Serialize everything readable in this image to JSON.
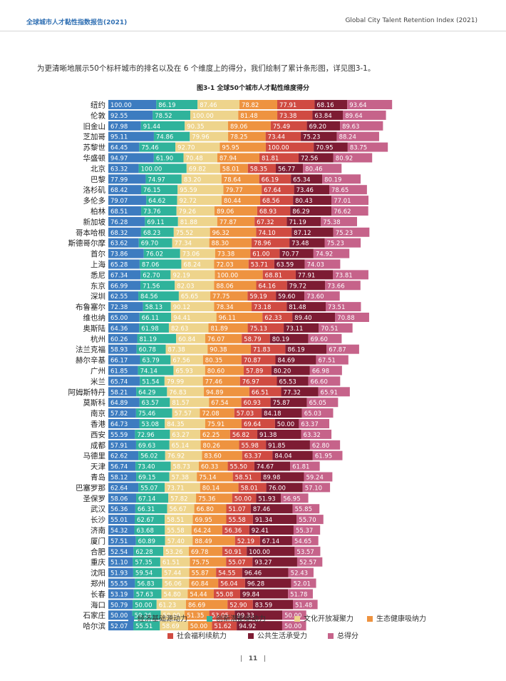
{
  "header": {
    "left": "全球城市人才黏性指数报告(2021)",
    "right": "Global City Talent Retention Index (2021)"
  },
  "intro": "为更清晰地展示50个标杆城市的排名以及在 6 个维度上的得分，我们绘制了累计条形图，详见图3-1。",
  "chart_title": "图3-1 全球50个城市人才黏性维度得分",
  "page_number": "11",
  "chart_data": {
    "type": "bar",
    "orientation": "horizontal",
    "stacked": true,
    "title": "图3-1 全球50个城市人才黏性维度得分",
    "categories": [
      "纽约",
      "伦敦",
      "旧金山",
      "芝加哥",
      "苏黎世",
      "华盛顿",
      "北京",
      "巴黎",
      "洛杉矶",
      "多伦多",
      "柏林",
      "新加坡",
      "哥本哈根",
      "斯德哥尔摩",
      "首尔",
      "上海",
      "悉尼",
      "东京",
      "深圳",
      "布鲁塞尔",
      "维也纳",
      "奥斯陆",
      "杭州",
      "法兰克福",
      "赫尔辛基",
      "广州",
      "米兰",
      "阿姆斯特丹",
      "莫斯科",
      "南京",
      "香港",
      "西安",
      "成都",
      "马德里",
      "天津",
      "青岛",
      "巴塞罗那",
      "圣保罗",
      "武汉",
      "长沙",
      "济南",
      "厦门",
      "合肥",
      "重庆",
      "沈阳",
      "郑州",
      "长春",
      "海口",
      "石家庄",
      "哈尔滨"
    ],
    "series": [
      {
        "name": "经济基础源动力",
        "color": "#3d7cc0",
        "values": [
          100.0,
          92.55,
          67.98,
          95.11,
          64.45,
          94.97,
          63.32,
          77.99,
          68.42,
          79.07,
          68.51,
          76.28,
          68.32,
          63.62,
          73.86,
          65.28,
          67.34,
          66.99,
          62.55,
          72.38,
          65.0,
          64.36,
          60.26,
          58.93,
          66.17,
          61.85,
          65.74,
          58.21,
          64.89,
          57.82,
          64.73,
          55.59,
          57.91,
          62.62,
          56.74,
          58.12,
          62.64,
          58.06,
          56.36,
          55.01,
          54.32,
          57.51,
          52.54,
          51.1,
          51.93,
          55.55,
          53.19,
          50.79,
          50.0,
          52.07
        ]
      },
      {
        "name": "创新潜能驱动力",
        "color": "#2fb39b",
        "values": [
          86.19,
          78.52,
          91.44,
          74.86,
          75.46,
          61.9,
          100.0,
          74.97,
          76.15,
          64.62,
          73.76,
          69.11,
          68.23,
          69.7,
          76.02,
          87.06,
          62.7,
          71.56,
          84.56,
          58.13,
          66.11,
          61.98,
          81.19,
          60.78,
          63.79,
          74.14,
          51.54,
          64.29,
          63.57,
          75.46,
          53.08,
          72.96,
          69.63,
          56.02,
          73.4,
          69.15,
          55.07,
          67.14,
          66.31,
          62.67,
          63.68,
          60.89,
          62.28,
          57.35,
          59.54,
          56.83,
          57.63,
          50.0,
          59.26,
          55.51
        ]
      },
      {
        "name": "文化开放凝聚力",
        "color": "#eed48c",
        "values": [
          87.46,
          100.0,
          90.35,
          79.96,
          92.7,
          70.48,
          69.82,
          83.2,
          95.59,
          92.72,
          79.26,
          81.88,
          75.52,
          77.34,
          73.06,
          68.24,
          92.19,
          82.03,
          65.65,
          90.12,
          94.41,
          82.63,
          60.84,
          87.38,
          67.56,
          65.93,
          79.99,
          76.83,
          81.57,
          57.57,
          84.35,
          63.27,
          65.14,
          76.92,
          58.73,
          57.38,
          73.71,
          57.82,
          56.67,
          58.51,
          55.58,
          57.4,
          53.26,
          61.51,
          57.44,
          56.06,
          54.8,
          61.23,
          50.0,
          58.69
        ]
      },
      {
        "name": "生态健康吸纳力",
        "color": "#ee9340",
        "values": [
          78.82,
          81.48,
          89.06,
          78.25,
          95.95,
          87.94,
          58.01,
          78.64,
          79.77,
          80.44,
          89.06,
          77.87,
          96.32,
          88.3,
          73.38,
          72.03,
          100.0,
          88.06,
          77.75,
          78.34,
          96.11,
          81.89,
          76.07,
          90.38,
          80.35,
          80.6,
          77.46,
          94.89,
          67.54,
          72.08,
          75.91,
          62.25,
          80.26,
          83.6,
          60.33,
          75.14,
          80.14,
          75.36,
          66.8,
          69.95,
          64.24,
          88.49,
          69.78,
          75.75,
          55.87,
          60.84,
          54.44,
          86.69,
          51.35,
          50.0
        ]
      },
      {
        "name": "社会福利续航力",
        "color": "#d04b42",
        "values": [
          77.91,
          73.38,
          75.49,
          73.44,
          100.0,
          81.81,
          58.35,
          66.19,
          67.64,
          68.56,
          68.93,
          67.32,
          74.1,
          78.96,
          61.0,
          53.71,
          68.81,
          64.16,
          59.19,
          73.18,
          62.33,
          75.13,
          58.79,
          71.83,
          70.87,
          57.89,
          76.97,
          66.51,
          60.93,
          57.03,
          69.64,
          56.82,
          55.98,
          63.37,
          55.5,
          58.51,
          58.01,
          50.0,
          51.07,
          55.58,
          56.36,
          52.19,
          50.91,
          55.07,
          54.55,
          56.04,
          55.08,
          52.9,
          53.05,
          51.62
        ]
      },
      {
        "name": "公共生活承受力",
        "color": "#7d1c33",
        "values": [
          68.16,
          63.84,
          69.2,
          75.23,
          70.95,
          72.56,
          56.77,
          65.34,
          73.46,
          80.43,
          86.29,
          71.19,
          87.12,
          73.48,
          70.77,
          63.59,
          77.91,
          79.72,
          59.6,
          81.48,
          89.4,
          73.11,
          80.19,
          86.19,
          84.69,
          80.2,
          65.53,
          77.32,
          75.87,
          84.18,
          50.0,
          91.38,
          91.85,
          84.04,
          74.67,
          89.98,
          76.0,
          51.93,
          87.46,
          91.34,
          92.41,
          67.14,
          100.0,
          93.27,
          96.46,
          96.28,
          99.84,
          83.59,
          99.33,
          94.92
        ]
      },
      {
        "name": "总得分",
        "color": "#c6638a",
        "values": [
          93.64,
          89.64,
          89.63,
          88.24,
          83.75,
          80.92,
          80.46,
          80.19,
          78.65,
          77.01,
          76.62,
          75.38,
          75.23,
          75.23,
          74.92,
          74.03,
          73.81,
          73.66,
          73.6,
          73.51,
          70.88,
          70.51,
          69.6,
          67.87,
          67.51,
          66.98,
          66.6,
          65.91,
          65.05,
          65.03,
          63.37,
          63.32,
          62.8,
          61.95,
          61.81,
          59.24,
          57.1,
          56.95,
          55.85,
          55.7,
          55.37,
          54.65,
          53.57,
          52.57,
          52.43,
          52.01,
          51.78,
          51.48,
          50.0,
          50.0
        ]
      }
    ],
    "legend_position": "bottom",
    "grid": false
  }
}
